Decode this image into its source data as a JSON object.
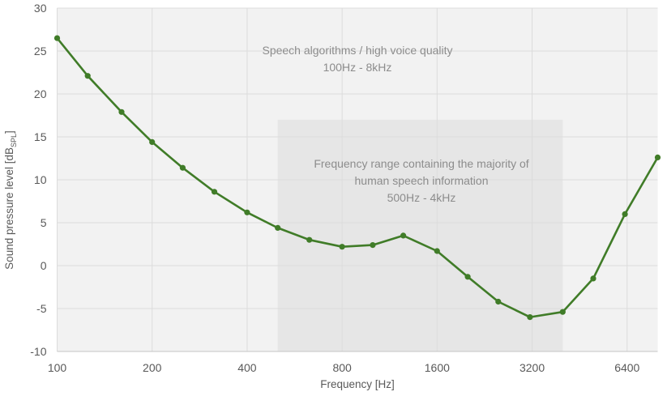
{
  "figure": {
    "x_axis_title": "Frequency [Hz]",
    "y_axis_title_main": "Sound pressure level [dB",
    "y_axis_title_sub": "SPL",
    "y_axis_title_end": "]"
  },
  "chart_data": {
    "type": "line",
    "x_scale": "log2",
    "x": [
      100,
      125,
      160,
      200,
      250,
      315,
      400,
      500,
      630,
      800,
      1000,
      1250,
      1600,
      2000,
      2500,
      3150,
      4000,
      5000,
      6300,
      8000
    ],
    "values": [
      26.5,
      22.1,
      17.9,
      14.4,
      11.4,
      8.6,
      6.2,
      4.4,
      3.0,
      2.2,
      2.4,
      3.5,
      1.7,
      -1.3,
      -4.2,
      -6.0,
      -5.4,
      -1.5,
      6.0,
      12.6
    ],
    "xlim": [
      100,
      8000
    ],
    "ylim": [
      -10,
      30
    ],
    "x_ticks": [
      100,
      200,
      400,
      800,
      1600,
      3200,
      6400
    ],
    "y_ticks": [
      30,
      25,
      20,
      15,
      10,
      5,
      0,
      -5,
      -10
    ],
    "xlabel": "Frequency [Hz]",
    "ylabel": "Sound pressure level [dB SPL]",
    "grid": true,
    "legend": "none",
    "line_color": "#407c28",
    "marker_color": "#407c28",
    "plot_bg_color": "#f2f2f2",
    "gridline_color": "#dcdcdc",
    "axis_line_color": "#c4c4c4",
    "shaded_region": {
      "x_from": 500,
      "x_to": 4000,
      "y_from": -10,
      "y_to": 17,
      "color": "#e6e6e6"
    },
    "annotations": {
      "speech_algorithms": {
        "line1": "Speech algorithms / high voice quality",
        "line2": "100Hz - 8kHz"
      },
      "speech_range": {
        "line1": "Frequency range containing the majority of",
        "line2": "human speech information",
        "line3": "500Hz - 4kHz"
      }
    }
  }
}
